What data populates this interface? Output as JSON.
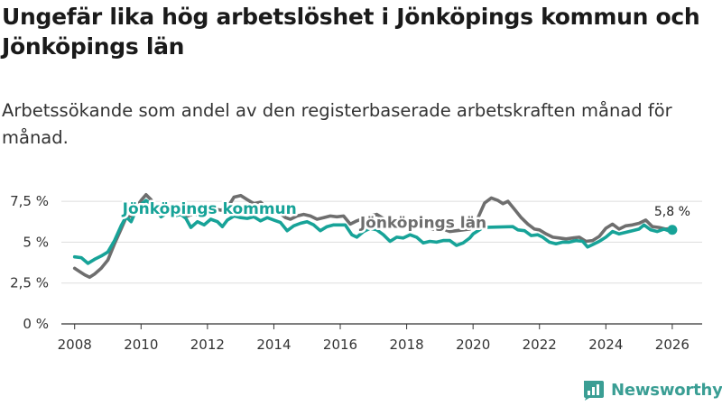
{
  "title": "Ungefär lika hög arbetslöshet i Jönköpings kommun och Jönköpings län",
  "subtitle": "Arbetssökande som andel av den registerbaserade arbetskraften månad för månad.",
  "brand": {
    "name": "Newsworthy",
    "color": "#3a9e94"
  },
  "colors": {
    "kommun": "#17a398",
    "lan": "#6e6e6e",
    "grid": "#dddddd",
    "axis": "#333333"
  },
  "chart_data": {
    "type": "line",
    "title": "Ungefär lika hög arbetslöshet i Jönköpings kommun och Jönköpings län",
    "xlabel": "",
    "ylabel": "",
    "xlim": [
      2007.6,
      2026.9
    ],
    "ylim": [
      0,
      8
    ],
    "x_ticks": [
      2008,
      2010,
      2012,
      2014,
      2016,
      2018,
      2020,
      2022,
      2024,
      2026
    ],
    "x_tick_labels": [
      "2008",
      "2010",
      "2012",
      "2014",
      "2016",
      "2018",
      "2020",
      "2022",
      "2024",
      "2026"
    ],
    "y_ticks": [
      0,
      2.5,
      5,
      7.5
    ],
    "y_tick_labels": [
      "0 %",
      "2,5 %",
      "5 %",
      "7,5 %"
    ],
    "grid": true,
    "end_label": "5,8 %",
    "series": [
      {
        "name": "Jönköpings kommun",
        "color": "#17a398",
        "label_at": [
          2012.2,
          7.05
        ],
        "points": [
          [
            2008.0,
            4.1
          ],
          [
            2008.2,
            4.05
          ],
          [
            2008.4,
            3.7
          ],
          [
            2008.6,
            3.95
          ],
          [
            2008.8,
            4.15
          ],
          [
            2009.0,
            4.4
          ],
          [
            2009.2,
            5.1
          ],
          [
            2009.4,
            6.0
          ],
          [
            2009.55,
            6.55
          ],
          [
            2009.7,
            6.25
          ],
          [
            2009.85,
            6.95
          ],
          [
            2010.0,
            7.3
          ],
          [
            2010.15,
            7.55
          ],
          [
            2010.3,
            7.35
          ],
          [
            2010.45,
            6.95
          ],
          [
            2010.6,
            6.55
          ],
          [
            2010.8,
            6.8
          ],
          [
            2011.0,
            6.6
          ],
          [
            2011.2,
            6.7
          ],
          [
            2011.35,
            6.45
          ],
          [
            2011.5,
            5.9
          ],
          [
            2011.7,
            6.25
          ],
          [
            2011.9,
            6.05
          ],
          [
            2012.1,
            6.4
          ],
          [
            2012.3,
            6.25
          ],
          [
            2012.45,
            5.95
          ],
          [
            2012.6,
            6.35
          ],
          [
            2012.8,
            6.6
          ],
          [
            2013.0,
            6.5
          ],
          [
            2013.2,
            6.45
          ],
          [
            2013.4,
            6.55
          ],
          [
            2013.6,
            6.3
          ],
          [
            2013.8,
            6.5
          ],
          [
            2014.0,
            6.35
          ],
          [
            2014.2,
            6.2
          ],
          [
            2014.4,
            5.7
          ],
          [
            2014.6,
            6.0
          ],
          [
            2014.8,
            6.15
          ],
          [
            2015.0,
            6.25
          ],
          [
            2015.2,
            6.05
          ],
          [
            2015.4,
            5.7
          ],
          [
            2015.6,
            5.95
          ],
          [
            2015.8,
            6.05
          ],
          [
            2016.0,
            6.05
          ],
          [
            2016.15,
            6.05
          ],
          [
            2016.35,
            5.45
          ],
          [
            2016.5,
            5.3
          ],
          [
            2016.7,
            5.65
          ],
          [
            2016.9,
            5.85
          ],
          [
            2017.1,
            5.75
          ],
          [
            2017.3,
            5.45
          ],
          [
            2017.5,
            5.05
          ],
          [
            2017.7,
            5.3
          ],
          [
            2017.9,
            5.25
          ],
          [
            2018.1,
            5.45
          ],
          [
            2018.3,
            5.3
          ],
          [
            2018.5,
            4.95
          ],
          [
            2018.7,
            5.05
          ],
          [
            2018.9,
            5.0
          ],
          [
            2019.1,
            5.1
          ],
          [
            2019.3,
            5.1
          ],
          [
            2019.5,
            4.8
          ],
          [
            2019.7,
            4.95
          ],
          [
            2019.9,
            5.25
          ],
          [
            2020.0,
            5.5
          ],
          [
            2020.15,
            5.7
          ],
          [
            2020.3,
            5.9
          ],
          [
            2021.2,
            5.95
          ],
          [
            2021.35,
            5.75
          ],
          [
            2021.55,
            5.7
          ],
          [
            2021.75,
            5.4
          ],
          [
            2021.95,
            5.45
          ],
          [
            2022.1,
            5.3
          ],
          [
            2022.3,
            5.0
          ],
          [
            2022.5,
            4.9
          ],
          [
            2022.7,
            5.0
          ],
          [
            2022.9,
            5.0
          ],
          [
            2023.1,
            5.1
          ],
          [
            2023.3,
            5.05
          ],
          [
            2023.45,
            4.7
          ],
          [
            2023.6,
            4.85
          ],
          [
            2023.8,
            5.05
          ],
          [
            2024.0,
            5.3
          ],
          [
            2024.2,
            5.65
          ],
          [
            2024.4,
            5.5
          ],
          [
            2024.6,
            5.6
          ],
          [
            2024.8,
            5.7
          ],
          [
            2025.0,
            5.8
          ],
          [
            2025.15,
            6.05
          ],
          [
            2025.35,
            5.75
          ],
          [
            2025.55,
            5.65
          ],
          [
            2025.75,
            5.8
          ],
          [
            2025.95,
            5.65
          ],
          [
            2026.0,
            5.75
          ]
        ]
      },
      {
        "name": "Jönköpings län",
        "color": "#6e6e6e",
        "label_at": [
          2018.5,
          6.2
        ],
        "points": [
          [
            2008.0,
            3.4
          ],
          [
            2008.15,
            3.2
          ],
          [
            2008.3,
            3.0
          ],
          [
            2008.45,
            2.85
          ],
          [
            2008.6,
            3.05
          ],
          [
            2008.8,
            3.4
          ],
          [
            2009.0,
            3.9
          ],
          [
            2009.2,
            4.9
          ],
          [
            2009.4,
            5.8
          ],
          [
            2009.55,
            6.5
          ],
          [
            2009.7,
            6.6
          ],
          [
            2009.85,
            7.1
          ],
          [
            2010.0,
            7.55
          ],
          [
            2010.15,
            7.9
          ],
          [
            2010.3,
            7.6
          ],
          [
            2010.45,
            7.1
          ],
          [
            2010.6,
            7.25
          ],
          [
            2010.8,
            7.0
          ],
          [
            2011.0,
            6.9
          ],
          [
            2011.2,
            6.85
          ],
          [
            2011.4,
            6.6
          ],
          [
            2011.6,
            6.75
          ],
          [
            2011.8,
            6.55
          ],
          [
            2012.0,
            6.8
          ],
          [
            2012.2,
            7.05
          ],
          [
            2012.4,
            6.95
          ],
          [
            2012.6,
            7.1
          ],
          [
            2012.8,
            7.75
          ],
          [
            2013.0,
            7.85
          ],
          [
            2013.2,
            7.6
          ],
          [
            2013.4,
            7.35
          ],
          [
            2013.6,
            7.45
          ],
          [
            2013.8,
            7.05
          ],
          [
            2014.0,
            6.8
          ],
          [
            2014.2,
            6.75
          ],
          [
            2014.35,
            6.5
          ],
          [
            2014.5,
            6.4
          ],
          [
            2014.7,
            6.6
          ],
          [
            2014.9,
            6.7
          ],
          [
            2015.1,
            6.6
          ],
          [
            2015.3,
            6.4
          ],
          [
            2015.5,
            6.5
          ],
          [
            2015.7,
            6.6
          ],
          [
            2015.9,
            6.55
          ],
          [
            2016.1,
            6.6
          ],
          [
            2016.3,
            6.1
          ],
          [
            2016.5,
            6.3
          ],
          [
            2016.7,
            6.45
          ],
          [
            2016.9,
            6.6
          ],
          [
            2017.1,
            6.7
          ],
          [
            2017.3,
            6.45
          ],
          [
            2017.5,
            6.1
          ],
          [
            2017.7,
            6.3
          ],
          [
            2017.9,
            6.25
          ],
          [
            2018.05,
            6.2
          ],
          [
            2018.9,
            5.75
          ],
          [
            2019.1,
            5.8
          ],
          [
            2019.3,
            5.65
          ],
          [
            2019.5,
            5.7
          ],
          [
            2019.7,
            5.75
          ],
          [
            2019.9,
            5.8
          ],
          [
            2020.0,
            6.05
          ],
          [
            2020.15,
            6.5
          ],
          [
            2020.35,
            7.4
          ],
          [
            2020.55,
            7.7
          ],
          [
            2020.75,
            7.55
          ],
          [
            2020.9,
            7.35
          ],
          [
            2021.05,
            7.5
          ],
          [
            2021.25,
            7.0
          ],
          [
            2021.45,
            6.5
          ],
          [
            2021.65,
            6.1
          ],
          [
            2021.85,
            5.8
          ],
          [
            2022.0,
            5.75
          ],
          [
            2022.2,
            5.5
          ],
          [
            2022.4,
            5.3
          ],
          [
            2022.6,
            5.25
          ],
          [
            2022.8,
            5.2
          ],
          [
            2023.0,
            5.25
          ],
          [
            2023.2,
            5.3
          ],
          [
            2023.4,
            5.05
          ],
          [
            2023.6,
            5.1
          ],
          [
            2023.8,
            5.35
          ],
          [
            2024.0,
            5.85
          ],
          [
            2024.2,
            6.1
          ],
          [
            2024.4,
            5.8
          ],
          [
            2024.6,
            6.0
          ],
          [
            2024.8,
            6.05
          ],
          [
            2025.0,
            6.15
          ],
          [
            2025.2,
            6.35
          ],
          [
            2025.4,
            5.95
          ],
          [
            2025.6,
            5.9
          ],
          [
            2025.8,
            5.8
          ],
          [
            2026.0,
            5.85
          ]
        ]
      }
    ]
  }
}
